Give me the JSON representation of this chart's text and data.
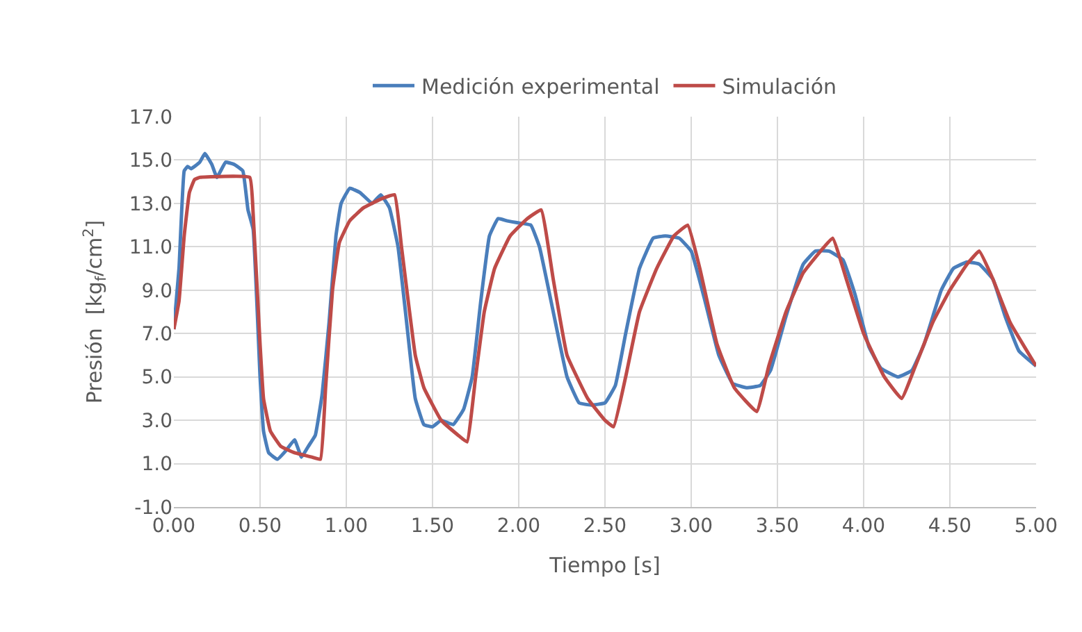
{
  "chart_data": {
    "type": "line",
    "xlabel": "Tiempo [s]",
    "ylabel": "Presión  [kg$_{f}$/cm$^{2}$]",
    "xlim": [
      0,
      5
    ],
    "xticks": [
      {
        "value": 0,
        "label": "0.00"
      },
      {
        "value": 0.5,
        "label": "0.50"
      },
      {
        "value": 1,
        "label": "1.00"
      },
      {
        "value": 1.5,
        "label": "1.50"
      },
      {
        "value": 2,
        "label": "2.00"
      },
      {
        "value": 2.5,
        "label": "2.50"
      },
      {
        "value": 3,
        "label": "3.00"
      },
      {
        "value": 3.5,
        "label": "3.50"
      },
      {
        "value": 4,
        "label": "4.00"
      },
      {
        "value": 4.5,
        "label": "4.50"
      },
      {
        "value": 5,
        "label": "5.00"
      }
    ],
    "ylim": [
      -1,
      17
    ],
    "yticks": [
      {
        "value": -1,
        "label": "-1.0"
      },
      {
        "value": 1,
        "label": "1.0"
      },
      {
        "value": 3,
        "label": "3.0"
      },
      {
        "value": 5,
        "label": "5.0"
      },
      {
        "value": 7,
        "label": "7.0"
      },
      {
        "value": 9,
        "label": "9.0"
      },
      {
        "value": 11,
        "label": "11.0"
      },
      {
        "value": 13,
        "label": "13.0"
      },
      {
        "value": 15,
        "label": "15.0"
      },
      {
        "value": 17,
        "label": "17.0"
      }
    ],
    "grid": true,
    "legend": "top",
    "marker": "none",
    "line_style": "solid",
    "series": [
      {
        "name": "Medición experimental",
        "color": "#4a7ebb",
        "x": [
          0.0,
          0.03,
          0.06,
          0.08,
          0.1,
          0.15,
          0.18,
          0.22,
          0.25,
          0.3,
          0.35,
          0.4,
          0.43,
          0.46,
          0.5,
          0.52,
          0.55,
          0.6,
          0.65,
          0.7,
          0.74,
          0.78,
          0.82,
          0.86,
          0.9,
          0.94,
          0.97,
          1.02,
          1.08,
          1.15,
          1.2,
          1.25,
          1.3,
          1.35,
          1.4,
          1.45,
          1.5,
          1.55,
          1.62,
          1.68,
          1.73,
          1.78,
          1.83,
          1.88,
          1.93,
          2.0,
          2.07,
          2.12,
          2.2,
          2.28,
          2.35,
          2.42,
          2.5,
          2.56,
          2.62,
          2.7,
          2.78,
          2.85,
          2.93,
          3.0,
          3.08,
          3.16,
          3.24,
          3.32,
          3.4,
          3.46,
          3.55,
          3.65,
          3.72,
          3.8,
          3.88,
          3.95,
          4.03,
          4.1,
          4.2,
          4.28,
          4.35,
          4.45,
          4.52,
          4.6,
          4.67,
          4.75,
          4.82,
          4.9,
          5.0
        ],
        "values": [
          7.2,
          10,
          14.5,
          14.7,
          14.6,
          14.9,
          15.3,
          14.8,
          14.2,
          14.9,
          14.8,
          14.5,
          12.7,
          11.8,
          5.0,
          2.5,
          1.5,
          1.2,
          1.6,
          2.1,
          1.3,
          1.8,
          2.3,
          4.2,
          7.5,
          11.5,
          13.0,
          13.7,
          13.5,
          13.0,
          13.4,
          12.8,
          11.0,
          7.5,
          4.0,
          2.8,
          2.7,
          3.0,
          2.8,
          3.5,
          5.0,
          8.5,
          11.5,
          12.3,
          12.2,
          12.1,
          12.0,
          11.0,
          8.0,
          5.0,
          3.8,
          3.7,
          3.8,
          4.6,
          7.0,
          10.0,
          11.4,
          11.5,
          11.4,
          10.8,
          8.5,
          6.0,
          4.7,
          4.5,
          4.6,
          5.3,
          7.8,
          10.2,
          10.8,
          10.8,
          10.4,
          8.8,
          6.4,
          5.4,
          5.0,
          5.3,
          6.5,
          9.0,
          10.0,
          10.3,
          10.2,
          9.5,
          7.8,
          6.2,
          5.5
        ]
      },
      {
        "name": "Simulación",
        "color": "#be4b48",
        "x": [
          0.0,
          0.03,
          0.06,
          0.09,
          0.12,
          0.15,
          0.44,
          0.46,
          0.5,
          0.52,
          0.56,
          0.62,
          0.7,
          0.8,
          0.85,
          0.88,
          0.92,
          0.96,
          1.02,
          1.1,
          1.2,
          1.28,
          1.32,
          1.4,
          1.45,
          1.55,
          1.65,
          1.7,
          1.75,
          1.8,
          1.86,
          1.95,
          2.05,
          2.13,
          2.2,
          2.28,
          2.4,
          2.5,
          2.55,
          2.62,
          2.7,
          2.8,
          2.9,
          2.98,
          3.05,
          3.15,
          3.25,
          3.38,
          3.45,
          3.55,
          3.65,
          3.75,
          3.82,
          3.9,
          4.0,
          4.12,
          4.22,
          4.3,
          4.4,
          4.5,
          4.6,
          4.67,
          4.75,
          4.85,
          5.0
        ],
        "values": [
          7.2,
          8.5,
          11.5,
          13.5,
          14.1,
          14.2,
          14.2,
          12.5,
          6.5,
          4.0,
          2.5,
          1.8,
          1.5,
          1.3,
          1.2,
          4.5,
          9.0,
          11.2,
          12.2,
          12.8,
          13.2,
          13.4,
          11.0,
          6.0,
          4.5,
          3.0,
          2.3,
          2.0,
          5.0,
          8.0,
          10.0,
          11.5,
          12.3,
          12.7,
          9.5,
          6.0,
          4.0,
          3.0,
          2.7,
          5.0,
          8.0,
          10.0,
          11.5,
          12.0,
          10.0,
          6.5,
          4.5,
          3.4,
          5.5,
          8.0,
          9.8,
          10.8,
          11.4,
          9.5,
          7.0,
          5.0,
          4.0,
          5.5,
          7.5,
          9.0,
          10.2,
          10.8,
          9.5,
          7.5,
          5.5
        ]
      }
    ]
  }
}
